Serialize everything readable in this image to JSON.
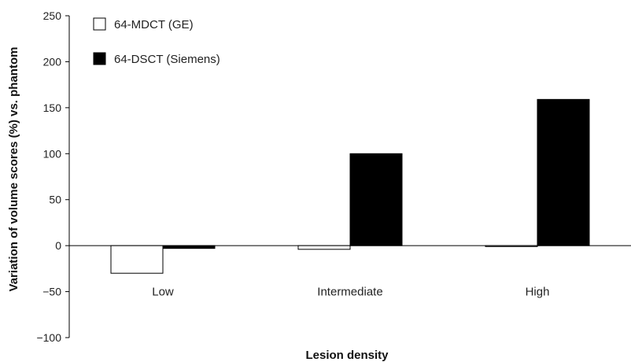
{
  "chart_data": {
    "type": "bar",
    "categories": [
      "Low",
      "Intermediate",
      "High"
    ],
    "series": [
      {
        "name": "64-MDCT (GE)",
        "values": [
          -30,
          -4,
          -1
        ],
        "fill": "#ffffff",
        "stroke": "#000000"
      },
      {
        "name": "64-DSCT (Siemens)",
        "values": [
          -3,
          100,
          159
        ],
        "fill": "#000000",
        "stroke": "#000000"
      }
    ],
    "xlabel": "Lesion density",
    "ylabel": "Variation of volume scores (%) vs. phantom",
    "ylim": [
      -100,
      250
    ],
    "yticks": [
      -100,
      -50,
      0,
      50,
      100,
      150,
      200,
      250
    ],
    "ytick_labels": [
      "−100",
      "−50",
      "0",
      "50",
      "100",
      "150",
      "200",
      "250"
    ],
    "grid": false,
    "legend_position": "top-left"
  }
}
